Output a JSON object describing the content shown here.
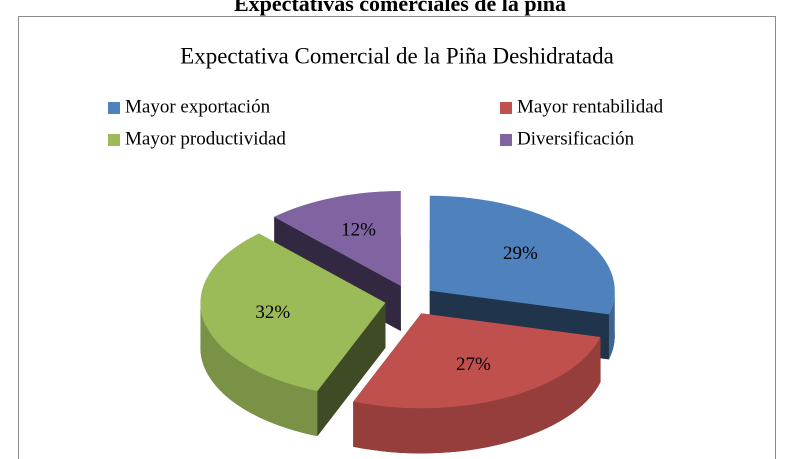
{
  "caption": "Expectativas comerciales de la piña",
  "chart_data": {
    "type": "pie",
    "title": "Expectativa Comercial de la Piña Deshidratada",
    "categories": [
      "Mayor exportación",
      "Mayor rentabilidad",
      "Mayor productividad",
      "Diversificación"
    ],
    "values": [
      29,
      27,
      32,
      12
    ],
    "value_labels": [
      "29%",
      "27%",
      "32%",
      "12%"
    ],
    "colors": [
      "#4f81bd",
      "#c0504d",
      "#9bbb59",
      "#8064a2"
    ],
    "legend": "top"
  }
}
